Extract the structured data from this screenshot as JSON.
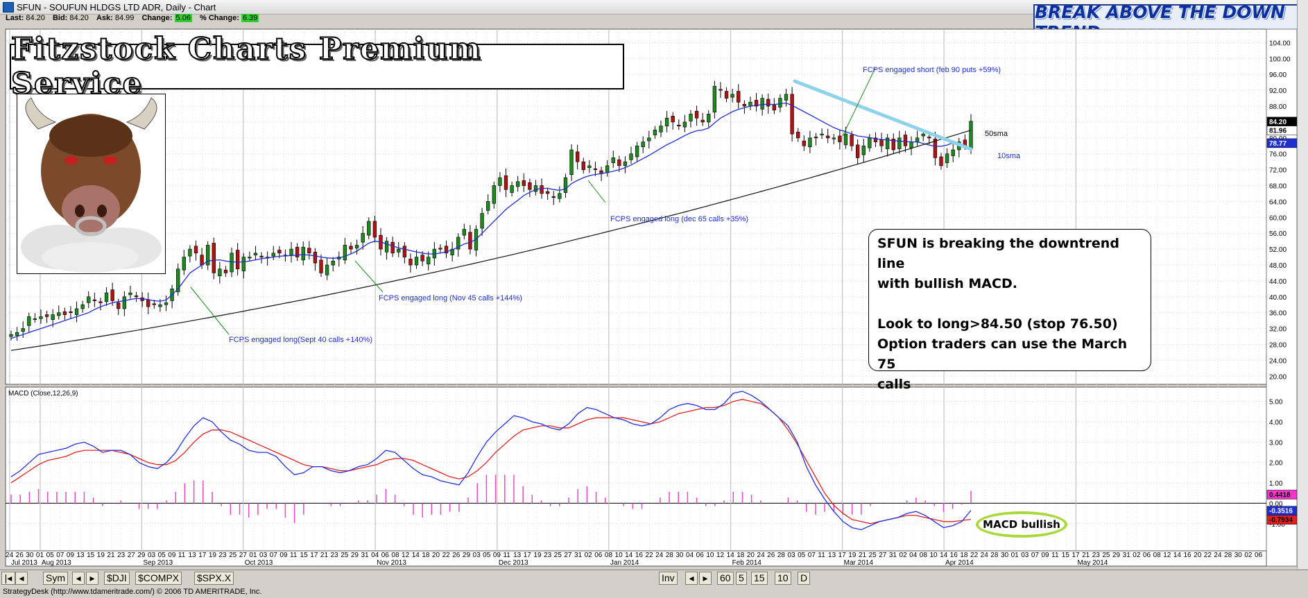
{
  "window": {
    "title": "SFUN - SOUFUN HLDGS LTD ADR, Daily - Chart"
  },
  "quote": {
    "last_label": "Last:",
    "last": "84.20",
    "bid_label": "Bid:",
    "bid": "84.20",
    "ask_label": "Ask:",
    "ask": "84.99",
    "change_label": "Change:",
    "change": "5.06",
    "pct_change_label": "% Change:",
    "pct_change": "6.39"
  },
  "banner": {
    "text": "BREAK ABOVE THE DOWN TREND"
  },
  "brand": {
    "text": "Fitzstock Charts Premium Service"
  },
  "note": {
    "line1": "SFUN is breaking the downtrend line",
    "line2": "with bullish MACD.",
    "line3": "Look to long>84.50 (stop 76.50)",
    "line4": "Option traders can use the March 75",
    "line5": "calls"
  },
  "macd_bullish_label": "MACD bullish",
  "colors": {
    "up_candle": "#1d8a1d",
    "down_candle": "#b31212",
    "sma10": "#1f2ecf",
    "sma50": "#111111",
    "trendline": "#8fd3ea",
    "macd_line": "#2030e0",
    "signal_line": "#e02020",
    "histogram": "#ee44cc"
  },
  "chart_data": [
    {
      "type": "candlestick",
      "symbol": "SFUN",
      "title": "SFUN - SOUFUN HLDGS LTD ADR, Daily - Chart",
      "ylim": [
        19,
        106
      ],
      "y_ticks": [
        "20.00",
        "24.00",
        "28.00",
        "32.00",
        "36.00",
        "40.00",
        "44.00",
        "48.00",
        "52.00",
        "56.00",
        "60.00",
        "64.00",
        "68.00",
        "72.00",
        "76.00",
        "80.00",
        "84.00",
        "88.00",
        "92.00",
        "96.00",
        "100.00",
        "104.00"
      ],
      "price_labels": [
        {
          "value": "84.20",
          "style": "black"
        },
        {
          "value": "81.96",
          "style": "white"
        },
        {
          "value": "78.77",
          "style": "blue"
        }
      ],
      "close": [
        30.5,
        31,
        32,
        35,
        34.5,
        35,
        35,
        35.5,
        36,
        35.5,
        36,
        37,
        38,
        40,
        39,
        38.5,
        41,
        39,
        37,
        40,
        41,
        40,
        39,
        37.5,
        38,
        38,
        38.5,
        42,
        47,
        50,
        52,
        51,
        48,
        53,
        46,
        47,
        46,
        51,
        47,
        50,
        50,
        51,
        50,
        50,
        51,
        51,
        50.5,
        52,
        50,
        52.5,
        51,
        48.5,
        46,
        48,
        49,
        50,
        53,
        52,
        53,
        56,
        59,
        55,
        52,
        54,
        51,
        52,
        50,
        48,
        50,
        49,
        50,
        52,
        52,
        51,
        52,
        55,
        57,
        52,
        57,
        61,
        64,
        68,
        70,
        67,
        68,
        69,
        68,
        67,
        68,
        66,
        66,
        65,
        66,
        70,
        77,
        74,
        72,
        73,
        72,
        71,
        73,
        75,
        73,
        74,
        76,
        78,
        79,
        80,
        82,
        83,
        85,
        84,
        83,
        84,
        86,
        85,
        84,
        86,
        93,
        92,
        90,
        91,
        89,
        88,
        89,
        88,
        90,
        88,
        87,
        90,
        91,
        81,
        80,
        78,
        80,
        80,
        81,
        80,
        80,
        79,
        81,
        78,
        75,
        78,
        80,
        79,
        78,
        80,
        77,
        80,
        78,
        79,
        80,
        81,
        80,
        75,
        73,
        76,
        77,
        79,
        78,
        84.2
      ],
      "sma10": [
        29.5,
        30,
        30.5,
        31,
        31.5,
        32,
        32.5,
        33,
        33.5,
        34,
        34.5,
        35,
        35.5,
        36,
        36.8,
        37.5,
        38,
        38.5,
        38.8,
        39,
        39.3,
        39.6,
        39.5,
        39.3,
        39,
        38.9,
        39.2,
        40.5,
        42,
        44,
        46,
        47,
        48,
        49,
        49.2,
        49.3,
        49,
        48.8,
        48.7,
        48.8,
        49,
        49.3,
        49.6,
        49.8,
        50,
        50.2,
        50.3,
        50.4,
        50.5,
        50.6,
        50.5,
        50.3,
        50,
        49.8,
        49.7,
        49.8,
        50.2,
        50.8,
        51.5,
        52.5,
        53.5,
        54,
        53.8,
        53.3,
        52.8,
        52.3,
        52,
        51.6,
        51.3,
        51,
        50.8,
        50.8,
        51,
        51.3,
        51.8,
        52.5,
        53.3,
        53.7,
        54.5,
        56,
        57.5,
        59,
        60.5,
        62,
        63.2,
        64.3,
        65.5,
        66.3,
        67,
        67.3,
        67.3,
        67,
        66.8,
        67.2,
        68.5,
        69.3,
        70,
        70.5,
        70.8,
        71,
        71.3,
        71.6,
        72,
        72.5,
        73.2,
        74,
        74.8,
        75.6,
        76.5,
        77.4,
        78.3,
        79,
        79.8,
        80.6,
        81.3,
        81.8,
        82,
        82.5,
        83.8,
        85,
        85.8,
        86.6,
        87.2,
        87.6,
        88,
        88.2,
        88.4,
        88.5,
        88.4,
        88.6,
        88.8,
        88.2,
        87.4,
        86.6,
        85.8,
        85,
        84.2,
        83.4,
        82.6,
        82,
        81.6,
        81,
        80.5,
        80.3,
        80.1,
        79.8,
        79.6,
        79.5,
        79.3,
        79.2,
        79.1,
        79,
        79,
        78.6,
        78.2,
        77.9,
        77.9,
        78.2,
        78.77
      ],
      "sma50_endpoints": [
        26.5,
        81.96
      ],
      "sma10_label": "10sma",
      "sma50_label": "50sma",
      "annotations": [
        "FCPS engaged long(Sept 40 calls +140%)",
        "FCPS engaged long (Nov 45 calls +144%)",
        "FCPS engaged long (dec 65 calls +35%)",
        "FCPS engaged short (feb 90 puts +59%)"
      ]
    },
    {
      "type": "line",
      "title": "MACD (Close,12,26,9)",
      "ylim": [
        -2.2,
        5.5
      ],
      "y_ticks": [
        "-1.00",
        "0.00",
        "1.00",
        "2.00",
        "3.00",
        "4.00",
        "5.00"
      ],
      "value_labels": [
        {
          "value": "0.4418",
          "style": "magenta"
        },
        {
          "value": "-0.3516",
          "style": "blue"
        },
        {
          "value": "-0.7934",
          "style": "red"
        }
      ],
      "series": [
        {
          "name": "MACD",
          "values": [
            1.3,
            1.6,
            2.0,
            2.4,
            2.5,
            2.6,
            2.7,
            2.9,
            3.0,
            2.8,
            2.5,
            2.6,
            2.6,
            2.4,
            2.0,
            1.8,
            1.7,
            2.0,
            2.5,
            3.2,
            3.8,
            4.2,
            4.0,
            3.5,
            3.1,
            2.9,
            2.6,
            2.5,
            2.5,
            2.3,
            1.8,
            1.4,
            1.5,
            1.8,
            1.8,
            1.6,
            1.5,
            1.6,
            1.8,
            1.9,
            2.2,
            2.6,
            2.5,
            2.1,
            1.7,
            1.4,
            1.3,
            1.1,
            1.0,
            0.9,
            1.5,
            2.3,
            3.0,
            3.5,
            3.9,
            4.3,
            4.2,
            4.0,
            3.9,
            3.7,
            3.6,
            3.9,
            4.4,
            4.7,
            4.6,
            4.4,
            4.2,
            4.1,
            3.9,
            3.8,
            3.9,
            4.2,
            4.6,
            4.8,
            4.9,
            4.8,
            4.6,
            4.6,
            4.9,
            5.4,
            5.5,
            5.3,
            5.0,
            4.6,
            4.2,
            3.8,
            3.0,
            1.8,
            0.9,
            0.2,
            -0.4,
            -0.9,
            -1.2,
            -1.3,
            -1.1,
            -0.9,
            -0.8,
            -0.7,
            -0.5,
            -0.4,
            -0.6,
            -0.9,
            -1.2,
            -1.1,
            -0.9,
            -0.35
          ]
        },
        {
          "name": "Signal",
          "values": [
            1.0,
            1.3,
            1.6,
            1.9,
            2.1,
            2.2,
            2.3,
            2.5,
            2.6,
            2.6,
            2.6,
            2.6,
            2.5,
            2.4,
            2.2,
            2.0,
            1.9,
            1.9,
            2.1,
            2.5,
            3.0,
            3.4,
            3.6,
            3.6,
            3.5,
            3.3,
            3.1,
            2.9,
            2.7,
            2.5,
            2.3,
            2.1,
            1.9,
            1.8,
            1.8,
            1.7,
            1.6,
            1.6,
            1.7,
            1.8,
            1.9,
            2.1,
            2.2,
            2.2,
            2.1,
            1.9,
            1.7,
            1.5,
            1.3,
            1.2,
            1.3,
            1.6,
            2.0,
            2.5,
            2.9,
            3.3,
            3.6,
            3.7,
            3.8,
            3.8,
            3.7,
            3.7,
            3.9,
            4.1,
            4.2,
            4.2,
            4.2,
            4.2,
            4.1,
            4.0,
            3.9,
            4.0,
            4.2,
            4.4,
            4.5,
            4.6,
            4.7,
            4.7,
            4.8,
            5.0,
            5.1,
            5.0,
            4.9,
            4.6,
            4.2,
            3.6,
            2.9,
            2.1,
            1.3,
            0.5,
            -0.1,
            -0.5,
            -0.8,
            -0.9,
            -1.0,
            -0.9,
            -0.8,
            -0.7,
            -0.6,
            -0.6,
            -0.7,
            -0.8,
            -0.9,
            -0.9,
            -0.85,
            -0.79
          ]
        }
      ]
    }
  ],
  "x_axis": {
    "day_ticks": [
      "24",
      "26",
      "30",
      "01",
      "05",
      "07",
      "09",
      "13",
      "15",
      "19",
      "21",
      "23",
      "27",
      "29",
      "03",
      "05",
      "09",
      "11",
      "13",
      "17",
      "19",
      "23",
      "25",
      "27",
      "01",
      "03",
      "07",
      "09",
      "11",
      "15",
      "17",
      "21",
      "23",
      "25",
      "29",
      "31",
      "04",
      "06",
      "08",
      "12",
      "14",
      "18",
      "20",
      "22",
      "26",
      "29",
      "03",
      "05",
      "09",
      "11",
      "13",
      "17",
      "19",
      "23",
      "25",
      "27",
      "31",
      "02",
      "06",
      "08",
      "10",
      "14",
      "16",
      "22",
      "24",
      "28",
      "30",
      "04",
      "06",
      "10",
      "12",
      "14",
      "18",
      "20",
      "24",
      "26",
      "28",
      "03",
      "05",
      "07",
      "11",
      "13",
      "17",
      "19",
      "21",
      "25",
      "27",
      "31",
      "02",
      "04",
      "08",
      "10",
      "14",
      "16",
      "18",
      "22",
      "24",
      "28",
      "30",
      "01",
      "03",
      "07",
      "09",
      "11",
      "15",
      "17",
      "21",
      "23",
      "25",
      "29",
      "31",
      "02",
      "06",
      "08",
      "12",
      "14",
      "16",
      "20",
      "22",
      "24",
      "28",
      "30",
      "02",
      "06"
    ],
    "month_labels": [
      "Jul 2013",
      "Aug 2013",
      "Sep 2013",
      "Oct 2013",
      "Nov 2013",
      "Dec 2013",
      "Jan 2014",
      "Feb 2014",
      "Mar 2014",
      "Apr 2014",
      "May 2014"
    ]
  },
  "bottom_bar": {
    "sym": "Sym",
    "tabs": [
      "$DJI",
      "$COMPX",
      "$SPX.X"
    ],
    "inv": "Inv",
    "periods": [
      "60",
      "5",
      "15",
      "10",
      "D"
    ]
  },
  "status": "StrategyDesk (http://www.tdameritrade.com/) © 2006 TD AMERITRADE, Inc."
}
